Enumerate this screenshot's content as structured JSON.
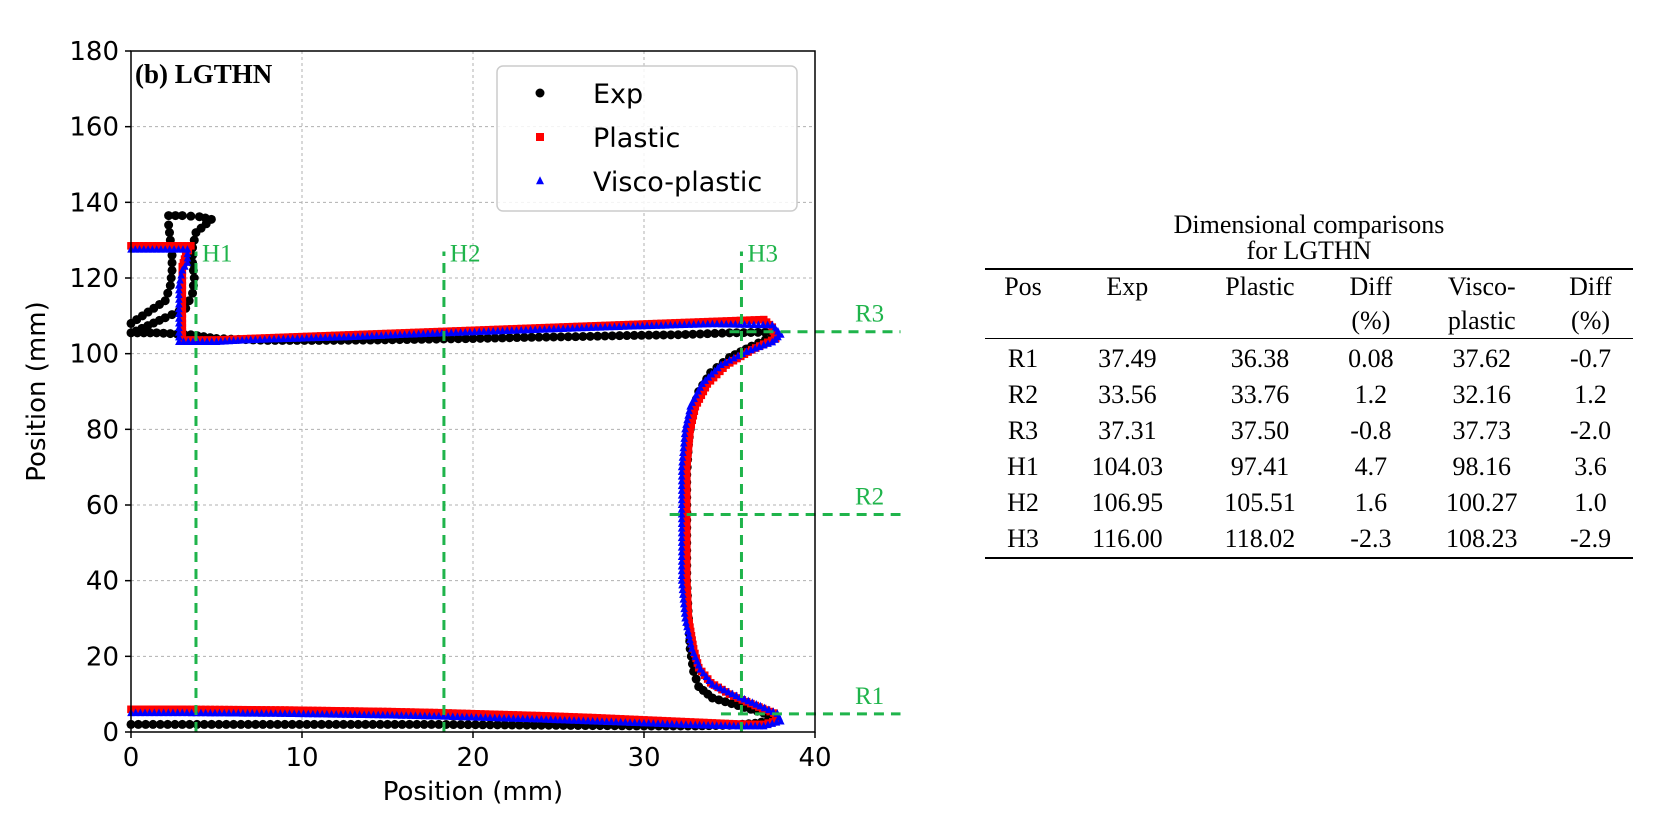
{
  "chart_data": {
    "type": "scatter",
    "panel_label": "(b) LGTHN",
    "xlabel": "Position (mm)",
    "ylabel": "Position (mm)",
    "xlim": [
      0,
      40
    ],
    "ylim": [
      0,
      180
    ],
    "xticks": [
      0,
      10,
      20,
      30,
      40
    ],
    "yticks": [
      0,
      20,
      40,
      60,
      80,
      100,
      120,
      140,
      160,
      180
    ],
    "grid": true,
    "legend_position": "top-right",
    "series": [
      {
        "name": "Exp",
        "marker": "circle",
        "color": "#000000",
        "points": [
          [
            0.0,
            2.0
          ],
          [
            3.0,
            2.0
          ],
          [
            6.0,
            2.0
          ],
          [
            9.0,
            2.0
          ],
          [
            12.0,
            2.0
          ],
          [
            15.0,
            2.0
          ],
          [
            18.0,
            2.0
          ],
          [
            21.0,
            1.9
          ],
          [
            24.0,
            1.8
          ],
          [
            27.0,
            1.7
          ],
          [
            30.0,
            1.6
          ],
          [
            33.0,
            1.6
          ],
          [
            35.0,
            1.8
          ],
          [
            36.5,
            2.3
          ],
          [
            37.6,
            3.2
          ],
          [
            37.0,
            5.0
          ],
          [
            35.5,
            7.0
          ],
          [
            34.0,
            9.0
          ],
          [
            33.2,
            12.0
          ],
          [
            32.9,
            16.0
          ],
          [
            32.7,
            22.0
          ],
          [
            32.6,
            30.0
          ],
          [
            32.5,
            40.0
          ],
          [
            32.5,
            50.0
          ],
          [
            32.5,
            60.0
          ],
          [
            32.5,
            68.0
          ],
          [
            32.6,
            76.0
          ],
          [
            32.8,
            84.0
          ],
          [
            33.2,
            90.0
          ],
          [
            33.9,
            95.0
          ],
          [
            35.0,
            99.0
          ],
          [
            36.3,
            102.0
          ],
          [
            37.5,
            104.5
          ],
          [
            37.5,
            105.7
          ],
          [
            35.0,
            105.5
          ],
          [
            32.0,
            105.0
          ],
          [
            29.0,
            104.8
          ],
          [
            26.0,
            104.5
          ],
          [
            23.0,
            104.3
          ],
          [
            20.0,
            104.0
          ],
          [
            17.0,
            103.8
          ],
          [
            14.0,
            103.6
          ],
          [
            11.0,
            103.5
          ],
          [
            8.0,
            103.5
          ],
          [
            5.0,
            104.0
          ],
          [
            3.5,
            105.0
          ],
          [
            1.5,
            105.5
          ],
          [
            0.0,
            105.5
          ],
          [
            0.0,
            108.0
          ],
          [
            1.0,
            111.0
          ],
          [
            2.0,
            114.0
          ],
          [
            2.3,
            118.0
          ],
          [
            2.4,
            122.0
          ],
          [
            2.4,
            126.0
          ],
          [
            2.3,
            130.0
          ],
          [
            2.2,
            134.0
          ],
          [
            2.2,
            136.5
          ],
          [
            3.0,
            136.5
          ],
          [
            4.0,
            136.2
          ],
          [
            4.7,
            135.5
          ],
          [
            3.8,
            132.0
          ],
          [
            3.6,
            128.0
          ],
          [
            3.6,
            124.0
          ],
          [
            3.7,
            120.0
          ],
          [
            3.6,
            116.0
          ],
          [
            3.2,
            112.0
          ],
          [
            2.0,
            109.5
          ],
          [
            0.3,
            106.0
          ]
        ]
      },
      {
        "name": "Plastic",
        "marker": "square",
        "color": "#ff0000",
        "points": [
          [
            0.0,
            6.0
          ],
          [
            3.0,
            6.0
          ],
          [
            6.0,
            5.9
          ],
          [
            9.0,
            5.8
          ],
          [
            12.0,
            5.6
          ],
          [
            15.0,
            5.4
          ],
          [
            18.0,
            5.1
          ],
          [
            21.0,
            4.7
          ],
          [
            24.0,
            4.3
          ],
          [
            27.0,
            3.8
          ],
          [
            30.0,
            3.2
          ],
          [
            33.0,
            2.6
          ],
          [
            35.5,
            2.1
          ],
          [
            37.0,
            2.0
          ],
          [
            37.8,
            3.0
          ],
          [
            37.6,
            5.0
          ],
          [
            36.5,
            7.0
          ],
          [
            35.0,
            10.0
          ],
          [
            33.9,
            13.0
          ],
          [
            33.2,
            17.0
          ],
          [
            32.9,
            22.0
          ],
          [
            32.6,
            30.0
          ],
          [
            32.5,
            40.0
          ],
          [
            32.5,
            50.0
          ],
          [
            32.5,
            60.0
          ],
          [
            32.5,
            70.0
          ],
          [
            32.7,
            80.0
          ],
          [
            33.0,
            86.0
          ],
          [
            33.7,
            92.0
          ],
          [
            34.8,
            97.0
          ],
          [
            36.3,
            101.0
          ],
          [
            37.7,
            104.0
          ],
          [
            37.5,
            107.0
          ],
          [
            37.0,
            109.0
          ],
          [
            34.0,
            108.5
          ],
          [
            31.0,
            108.0
          ],
          [
            28.0,
            107.5
          ],
          [
            25.0,
            107.0
          ],
          [
            22.0,
            106.5
          ],
          [
            19.0,
            106.0
          ],
          [
            16.0,
            105.5
          ],
          [
            13.0,
            105.0
          ],
          [
            10.0,
            104.5
          ],
          [
            7.0,
            104.0
          ],
          [
            5.0,
            103.6
          ],
          [
            3.0,
            103.6
          ],
          [
            3.0,
            108.0
          ],
          [
            3.0,
            113.0
          ],
          [
            3.0,
            118.0
          ],
          [
            3.0,
            123.0
          ],
          [
            3.2,
            126.0
          ],
          [
            3.5,
            128.5
          ],
          [
            2.0,
            128.5
          ],
          [
            0.5,
            128.5
          ],
          [
            0.0,
            128.5
          ]
        ]
      },
      {
        "name": "Visco-plastic",
        "marker": "triangle",
        "color": "#0000ff",
        "points": [
          [
            0.0,
            5.0
          ],
          [
            3.0,
            5.0
          ],
          [
            6.0,
            4.9
          ],
          [
            9.0,
            4.8
          ],
          [
            12.0,
            4.6
          ],
          [
            15.0,
            4.4
          ],
          [
            18.0,
            4.1
          ],
          [
            21.0,
            3.7
          ],
          [
            24.0,
            3.3
          ],
          [
            27.0,
            2.8
          ],
          [
            30.0,
            2.3
          ],
          [
            33.0,
            1.8
          ],
          [
            35.5,
            1.5
          ],
          [
            37.0,
            1.5
          ],
          [
            38.0,
            2.8
          ],
          [
            37.8,
            4.8
          ],
          [
            36.8,
            6.8
          ],
          [
            35.4,
            9.5
          ],
          [
            34.0,
            12.5
          ],
          [
            33.3,
            16.5
          ],
          [
            32.8,
            22.0
          ],
          [
            32.4,
            30.0
          ],
          [
            32.2,
            40.0
          ],
          [
            32.2,
            50.0
          ],
          [
            32.2,
            60.0
          ],
          [
            32.2,
            70.0
          ],
          [
            32.4,
            80.0
          ],
          [
            32.7,
            86.0
          ],
          [
            33.4,
            92.0
          ],
          [
            34.5,
            97.0
          ],
          [
            36.0,
            100.5
          ],
          [
            37.5,
            103.0
          ],
          [
            38.0,
            105.0
          ],
          [
            37.5,
            107.5
          ],
          [
            34.0,
            107.8
          ],
          [
            31.0,
            107.4
          ],
          [
            28.0,
            107.0
          ],
          [
            25.0,
            106.5
          ],
          [
            22.0,
            106.0
          ],
          [
            19.0,
            105.5
          ],
          [
            16.0,
            105.0
          ],
          [
            13.0,
            104.4
          ],
          [
            10.0,
            104.0
          ],
          [
            7.0,
            103.6
          ],
          [
            5.0,
            103.1
          ],
          [
            2.8,
            103.1
          ],
          [
            2.8,
            108.0
          ],
          [
            2.8,
            113.0
          ],
          [
            2.8,
            118.0
          ],
          [
            3.0,
            122.0
          ],
          [
            3.3,
            124.0
          ],
          [
            3.3,
            127.5
          ],
          [
            2.0,
            127.5
          ],
          [
            0.5,
            127.5
          ],
          [
            0.0,
            127.5
          ]
        ]
      }
    ],
    "annotations": {
      "vertical": [
        {
          "label": "H1",
          "x": 3.8,
          "y_from": 0,
          "y_top": 127
        },
        {
          "label": "H2",
          "x": 18.3,
          "y_from": 0,
          "y_top": 127
        },
        {
          "label": "H3",
          "x": 35.7,
          "y_from": 0,
          "y_top": 127
        }
      ],
      "horizontal": [
        {
          "label": "R1",
          "y": 4.8,
          "x_from": 34.5,
          "x_to": 45
        },
        {
          "label": "R2",
          "y": 57.5,
          "x_from": 31.5,
          "x_to": 45
        },
        {
          "label": "R3",
          "y": 105.8,
          "x_from": 35.0,
          "x_to": 45
        }
      ]
    }
  },
  "table": {
    "caption_line1": "Dimensional comparisons",
    "caption_line2": "for LGTHN",
    "headers": [
      [
        "Pos",
        ""
      ],
      [
        "Exp",
        ""
      ],
      [
        "Plastic",
        ""
      ],
      [
        "Diff",
        "(%)"
      ],
      [
        "Visco-",
        "plastic"
      ],
      [
        "Diff",
        "(%)"
      ]
    ],
    "rows": [
      [
        "R1",
        "37.49",
        "36.38",
        "0.08",
        "37.62",
        "-0.7"
      ],
      [
        "R2",
        "33.56",
        "33.76",
        "1.2",
        "32.16",
        "1.2"
      ],
      [
        "R3",
        "37.31",
        "37.50",
        "-0.8",
        "37.73",
        "-2.0"
      ],
      [
        "H1",
        "104.03",
        "97.41",
        "4.7",
        "98.16",
        "3.6"
      ],
      [
        "H2",
        "106.95",
        "105.51",
        "1.6",
        "100.27",
        "1.0"
      ],
      [
        "H3",
        "116.00",
        "118.02",
        "-2.3",
        "108.23",
        "-2.9"
      ]
    ]
  }
}
